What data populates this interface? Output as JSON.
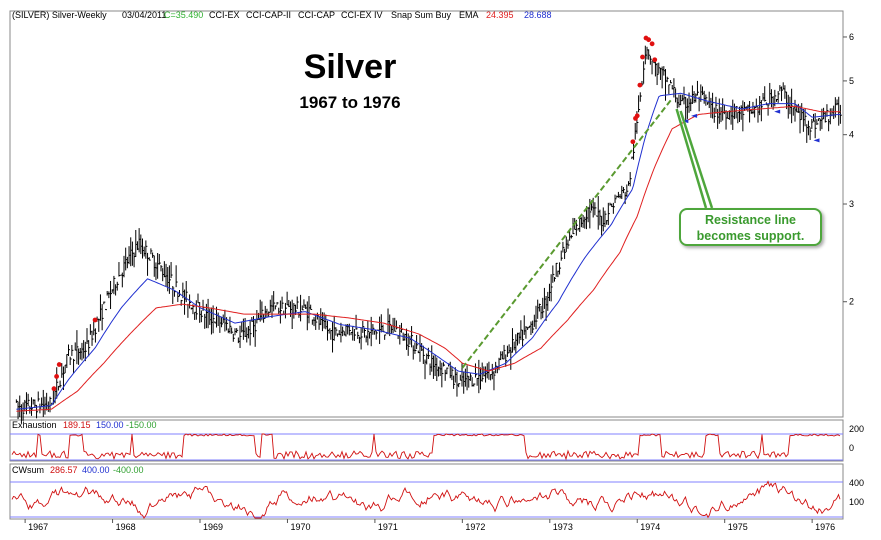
{
  "header": {
    "symbol": "(SILVER) Silver-Weekly",
    "date": "03/04/2011",
    "close": "C=35.490",
    "items": [
      "CCI-EX",
      "CCI-CAP-II",
      "CCI-CAP",
      "CCI-EX IV",
      "Snap Sum Buy",
      "EMA"
    ],
    "ema_fast": "24.395",
    "ema_slow": "28.688"
  },
  "colors": {
    "price": "#000000",
    "ema_fast": "#2030d0",
    "ema_slow": "#e02020",
    "trendline": "#5a9a30",
    "callout": "#4ea63c",
    "indicator": "#d01010",
    "band": "#8080ff",
    "cci_green": "#30b030"
  },
  "chart_data": [
    {
      "type": "line",
      "title": "Silver",
      "subtitle": "1967 to 1976",
      "scale": "log",
      "x_labels": [
        "1967",
        "1968",
        "1969",
        "1970",
        "1971",
        "1972",
        "1973",
        "1974",
        "1975",
        "1976"
      ],
      "y_ticks": [
        "2",
        "3",
        "4",
        "5",
        "6"
      ],
      "ylim": [
        1.25,
        6.6
      ],
      "series": [
        {
          "name": "Price",
          "points": [
            [
              1966.9,
              1.29
            ],
            [
              1967.3,
              1.31
            ],
            [
              1967.5,
              1.6
            ],
            [
              1967.7,
              1.65
            ],
            [
              1967.9,
              1.95
            ],
            [
              1968.05,
              2.2
            ],
            [
              1968.3,
              2.55
            ],
            [
              1968.55,
              2.3
            ],
            [
              1968.8,
              2.05
            ],
            [
              1969.05,
              1.9
            ],
            [
              1969.3,
              1.82
            ],
            [
              1969.45,
              1.72
            ],
            [
              1969.6,
              1.8
            ],
            [
              1969.8,
              1.95
            ],
            [
              1970.0,
              1.95
            ],
            [
              1970.25,
              1.93
            ],
            [
              1970.4,
              1.8
            ],
            [
              1970.55,
              1.75
            ],
            [
              1970.7,
              1.8
            ],
            [
              1970.9,
              1.75
            ],
            [
              1971.2,
              1.8
            ],
            [
              1971.5,
              1.65
            ],
            [
              1971.65,
              1.55
            ],
            [
              1971.85,
              1.5
            ],
            [
              1971.95,
              1.42
            ],
            [
              1972.1,
              1.45
            ],
            [
              1972.35,
              1.5
            ],
            [
              1972.55,
              1.65
            ],
            [
              1972.75,
              1.78
            ],
            [
              1972.95,
              2.0
            ],
            [
              1973.1,
              2.35
            ],
            [
              1973.3,
              2.7
            ],
            [
              1973.45,
              2.95
            ],
            [
              1973.6,
              2.8
            ],
            [
              1973.75,
              3.05
            ],
            [
              1973.9,
              3.2
            ],
            [
              1974.0,
              4.2
            ],
            [
              1974.1,
              5.8
            ],
            [
              1974.2,
              5.3
            ],
            [
              1974.35,
              5.0
            ],
            [
              1974.5,
              4.5
            ],
            [
              1974.7,
              4.7
            ],
            [
              1974.9,
              4.4
            ],
            [
              1975.1,
              4.4
            ],
            [
              1975.3,
              4.4
            ],
            [
              1975.5,
              4.6
            ],
            [
              1975.65,
              4.8
            ],
            [
              1975.8,
              4.4
            ],
            [
              1976.0,
              4.15
            ],
            [
              1976.15,
              4.3
            ],
            [
              1976.3,
              4.45
            ]
          ]
        },
        {
          "name": "EMA",
          "points": [
            [
              1966.9,
              1.28
            ],
            [
              1967.3,
              1.3
            ],
            [
              1967.5,
              1.45
            ],
            [
              1967.8,
              1.65
            ],
            [
              1968.1,
              1.95
            ],
            [
              1968.4,
              2.2
            ],
            [
              1968.7,
              2.1
            ],
            [
              1969.0,
              1.95
            ],
            [
              1969.4,
              1.83
            ],
            [
              1969.8,
              1.88
            ],
            [
              1970.2,
              1.92
            ],
            [
              1970.6,
              1.82
            ],
            [
              1971.0,
              1.78
            ],
            [
              1971.4,
              1.72
            ],
            [
              1971.7,
              1.6
            ],
            [
              1971.95,
              1.5
            ],
            [
              1972.2,
              1.48
            ],
            [
              1972.5,
              1.55
            ],
            [
              1972.8,
              1.72
            ],
            [
              1973.1,
              2.0
            ],
            [
              1973.4,
              2.4
            ],
            [
              1973.7,
              2.75
            ],
            [
              1973.95,
              3.2
            ],
            [
              1974.1,
              4.0
            ],
            [
              1974.25,
              4.7
            ],
            [
              1974.5,
              4.75
            ],
            [
              1974.8,
              4.6
            ],
            [
              1975.2,
              4.45
            ],
            [
              1975.5,
              4.55
            ],
            [
              1975.8,
              4.55
            ],
            [
              1976.0,
              4.3
            ],
            [
              1976.3,
              4.35
            ]
          ]
        },
        {
          "name": "EMA",
          "points": [
            [
              1966.9,
              1.27
            ],
            [
              1967.3,
              1.28
            ],
            [
              1967.6,
              1.38
            ],
            [
              1967.9,
              1.55
            ],
            [
              1968.2,
              1.75
            ],
            [
              1968.5,
              1.95
            ],
            [
              1968.8,
              1.98
            ],
            [
              1969.1,
              1.95
            ],
            [
              1969.5,
              1.9
            ],
            [
              1969.9,
              1.9
            ],
            [
              1970.3,
              1.9
            ],
            [
              1970.7,
              1.87
            ],
            [
              1971.1,
              1.83
            ],
            [
              1971.5,
              1.75
            ],
            [
              1971.8,
              1.65
            ],
            [
              1972.0,
              1.55
            ],
            [
              1972.3,
              1.5
            ],
            [
              1972.6,
              1.55
            ],
            [
              1972.9,
              1.65
            ],
            [
              1973.2,
              1.85
            ],
            [
              1973.5,
              2.1
            ],
            [
              1973.8,
              2.45
            ],
            [
              1974.0,
              2.85
            ],
            [
              1974.2,
              3.5
            ],
            [
              1974.4,
              4.1
            ],
            [
              1974.7,
              4.35
            ],
            [
              1975.0,
              4.4
            ],
            [
              1975.4,
              4.45
            ],
            [
              1975.8,
              4.5
            ],
            [
              1976.1,
              4.4
            ],
            [
              1976.3,
              4.4
            ]
          ]
        }
      ],
      "trendline": [
        [
          1972.0,
          1.52
        ],
        [
          1974.4,
          4.65
        ]
      ],
      "annotation": {
        "text_line1": "Resistance line",
        "text_line2": "becomes support."
      }
    },
    {
      "type": "line",
      "title": "Exhaustion",
      "values_label": [
        "189.15",
        "150.00",
        "-150.00"
      ],
      "y_ticks": [
        "200",
        "0"
      ],
      "ylim": [
        -250,
        250
      ]
    },
    {
      "type": "line",
      "title": "CWsum",
      "values_label": [
        "286.57",
        "400.00",
        "-400.00"
      ],
      "y_ticks": [
        "400",
        "100"
      ],
      "ylim": [
        -600,
        600
      ]
    }
  ]
}
